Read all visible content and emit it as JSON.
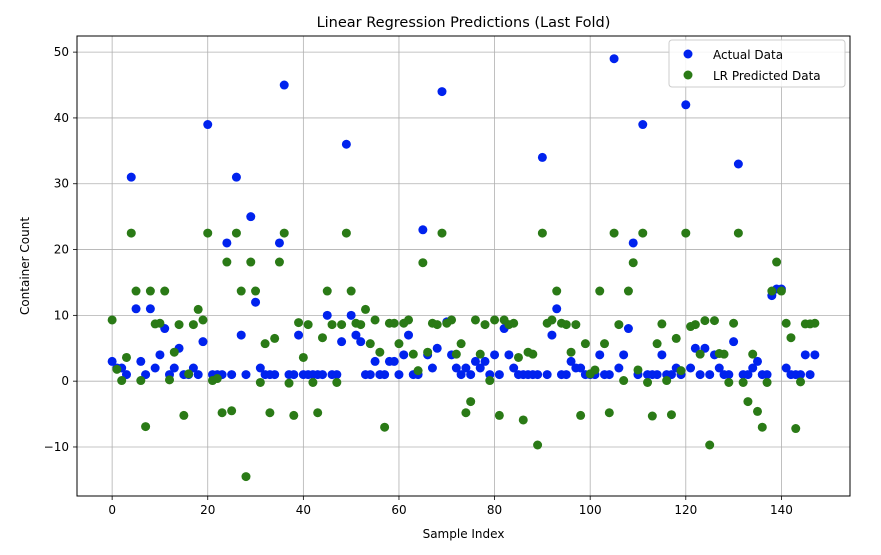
{
  "chart_data": {
    "type": "scatter",
    "title": "Linear Regression Predictions (Last Fold)",
    "xlabel": "Sample Index",
    "ylabel": "Container Count",
    "xlim": [
      -7.35,
      154.35
    ],
    "ylim": [
      -17.45,
      52.45
    ],
    "xticks": [
      0,
      20,
      40,
      60,
      80,
      100,
      120,
      140
    ],
    "yticks": [
      -10,
      0,
      10,
      20,
      30,
      40,
      50
    ],
    "grid": true,
    "legend_position": "top-right",
    "series": [
      {
        "name": "Actual Data",
        "color": "#0022ee",
        "x": [
          0,
          1,
          2,
          3,
          4,
          5,
          6,
          7,
          8,
          9,
          10,
          11,
          12,
          13,
          14,
          15,
          16,
          17,
          18,
          19,
          20,
          21,
          22,
          23,
          24,
          25,
          26,
          27,
          28,
          29,
          30,
          31,
          32,
          33,
          34,
          35,
          36,
          37,
          38,
          39,
          40,
          41,
          42,
          43,
          44,
          45,
          46,
          47,
          48,
          49,
          50,
          51,
          52,
          53,
          54,
          55,
          56,
          57,
          58,
          59,
          60,
          61,
          62,
          63,
          64,
          65,
          66,
          67,
          68,
          69,
          70,
          71,
          72,
          73,
          74,
          75,
          76,
          77,
          78,
          79,
          80,
          81,
          82,
          83,
          84,
          85,
          86,
          87,
          88,
          89,
          90,
          91,
          92,
          93,
          94,
          95,
          96,
          97,
          98,
          99,
          100,
          101,
          102,
          103,
          104,
          105,
          106,
          107,
          108,
          109,
          110,
          111,
          112,
          113,
          114,
          115,
          116,
          117,
          118,
          119,
          120,
          121,
          122,
          123,
          124,
          125,
          126,
          127,
          128,
          129,
          130,
          131,
          132,
          133,
          134,
          135,
          136,
          137,
          138,
          139,
          140,
          141,
          142,
          143,
          144,
          145,
          146,
          147
        ],
        "y": [
          3,
          2,
          2,
          1,
          31,
          11,
          3,
          1,
          11,
          2,
          4,
          8,
          1,
          2,
          5,
          1,
          1,
          2,
          1,
          6,
          39,
          1,
          1,
          1,
          21,
          1,
          31,
          7,
          1,
          25,
          12,
          2,
          1,
          1,
          1,
          21,
          45,
          1,
          1,
          7,
          1,
          1,
          1,
          1,
          1,
          10,
          1,
          1,
          6,
          36,
          10,
          7,
          6,
          1,
          1,
          3,
          1,
          1,
          3,
          3,
          1,
          4,
          7,
          1,
          1,
          23,
          4,
          2,
          5,
          44,
          9,
          4,
          2,
          1,
          2,
          1,
          3,
          2,
          3,
          1,
          4,
          1,
          8,
          4,
          2,
          1,
          1,
          1,
          1,
          1,
          34,
          1,
          7,
          11,
          1,
          1,
          3,
          2,
          2,
          1,
          1,
          1,
          4,
          1,
          1,
          49,
          2,
          4,
          8,
          21,
          1,
          39,
          1,
          1,
          1,
          4,
          1,
          1,
          2,
          1,
          42,
          2,
          5,
          1,
          5,
          1,
          4,
          2,
          1,
          1,
          6,
          33,
          1,
          1,
          2,
          3,
          1,
          1,
          13,
          14,
          14,
          2,
          1,
          1,
          1,
          4,
          1,
          4
        ]
      },
      {
        "name": "LR Predicted Data",
        "color": "#2a7a16",
        "x": [
          0,
          1,
          2,
          3,
          4,
          5,
          6,
          7,
          8,
          9,
          10,
          11,
          12,
          13,
          14,
          15,
          16,
          17,
          18,
          19,
          20,
          21,
          22,
          23,
          24,
          25,
          26,
          27,
          28,
          29,
          30,
          31,
          32,
          33,
          34,
          35,
          36,
          37,
          38,
          39,
          40,
          41,
          42,
          43,
          44,
          45,
          46,
          47,
          48,
          49,
          50,
          51,
          52,
          53,
          54,
          55,
          56,
          57,
          58,
          59,
          60,
          61,
          62,
          63,
          64,
          65,
          66,
          67,
          68,
          69,
          70,
          71,
          72,
          73,
          74,
          75,
          76,
          77,
          78,
          79,
          80,
          81,
          82,
          83,
          84,
          85,
          86,
          87,
          88,
          89,
          90,
          91,
          92,
          93,
          94,
          95,
          96,
          97,
          98,
          99,
          100,
          101,
          102,
          103,
          104,
          105,
          106,
          107,
          108,
          109,
          110,
          111,
          112,
          113,
          114,
          115,
          116,
          117,
          118,
          119,
          120,
          121,
          122,
          123,
          124,
          125,
          126,
          127,
          128,
          129,
          130,
          131,
          132,
          133,
          134,
          135,
          136,
          137,
          138,
          139,
          140,
          141,
          142,
          143,
          144,
          145,
          146,
          147
        ],
        "y": [
          9.3,
          1.8,
          0.1,
          3.6,
          22.5,
          13.7,
          0.1,
          -6.9,
          13.7,
          8.7,
          8.8,
          13.7,
          0.2,
          4.4,
          8.6,
          -5.2,
          1.1,
          8.6,
          10.9,
          9.3,
          22.5,
          0.1,
          0.4,
          -4.8,
          18.1,
          -4.5,
          22.5,
          13.7,
          -14.5,
          18.1,
          13.7,
          -0.2,
          5.7,
          -4.8,
          6.5,
          18.1,
          22.5,
          -0.3,
          -5.2,
          8.9,
          3.6,
          8.6,
          -0.2,
          -4.8,
          6.6,
          13.7,
          8.6,
          -0.2,
          8.6,
          22.5,
          13.7,
          8.8,
          8.6,
          10.9,
          5.7,
          9.3,
          4.4,
          -7.0,
          8.8,
          8.8,
          5.7,
          8.8,
          9.3,
          4.1,
          1.6,
          18.0,
          4.4,
          8.8,
          8.6,
          22.5,
          8.8,
          9.3,
          4.1,
          5.7,
          -4.8,
          -3.1,
          9.3,
          4.1,
          8.6,
          0.1,
          9.3,
          -5.2,
          9.3,
          8.6,
          8.8,
          3.6,
          -5.9,
          4.4,
          4.1,
          -9.7,
          22.5,
          8.8,
          9.3,
          13.7,
          8.8,
          8.6,
          4.4,
          8.6,
          -5.2,
          5.7,
          1.1,
          1.7,
          13.7,
          5.7,
          -4.8,
          22.5,
          8.6,
          0.1,
          13.7,
          18.0,
          1.7,
          22.5,
          -0.2,
          -5.3,
          5.7,
          8.7,
          0.1,
          -5.1,
          6.5,
          1.6,
          22.5,
          8.3,
          8.6,
          4.1,
          9.2,
          -9.7,
          9.2,
          4.2,
          4.1,
          -0.2,
          8.8,
          22.5,
          -0.2,
          -3.1,
          4.1,
          -4.6,
          -7.0,
          -0.2,
          13.7,
          18.1,
          13.7,
          8.8,
          6.6,
          -7.2,
          -0.1,
          8.7,
          8.7,
          8.8
        ]
      }
    ]
  }
}
